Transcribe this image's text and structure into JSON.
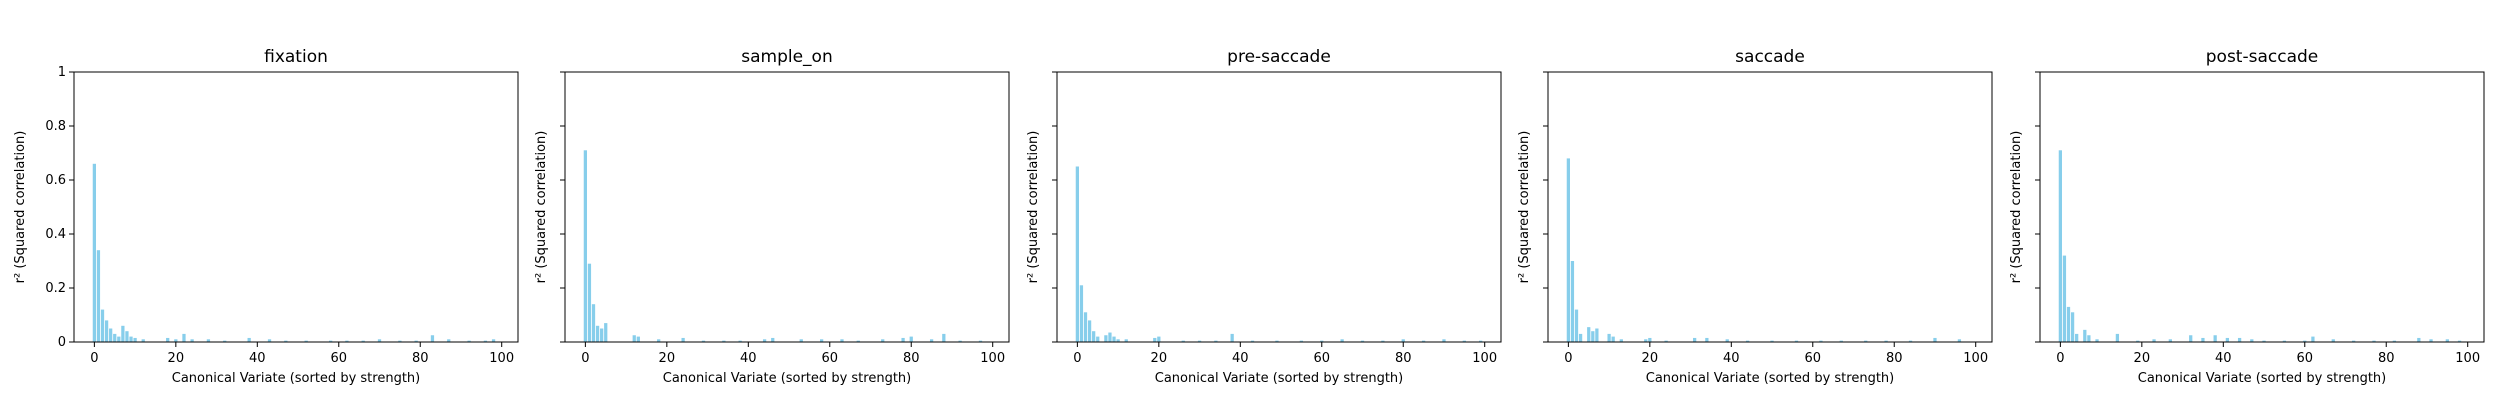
{
  "figure": {
    "ylabel": "r² (Squared correlation)",
    "xlabel": "Canonical Variate (sorted by strength)"
  },
  "style": {
    "bar_color": "#87ceeb",
    "axis_color": "#000000"
  },
  "chart_data": [
    {
      "type": "bar",
      "title": "fixation",
      "xlabel": "Canonical Variate (sorted by strength)",
      "ylabel": "r² (Squared correlation)",
      "xlim": [
        -5,
        104
      ],
      "ylim": [
        0,
        1.0
      ],
      "xticks": [
        0,
        20,
        40,
        60,
        80,
        100
      ],
      "yticks": [
        0.0,
        0.2,
        0.4,
        0.6,
        0.8,
        1.0
      ],
      "grid": false,
      "bars": [
        {
          "x": 0,
          "y": 0.66
        },
        {
          "x": 1,
          "y": 0.34
        },
        {
          "x": 2,
          "y": 0.12
        },
        {
          "x": 3,
          "y": 0.08
        },
        {
          "x": 4,
          "y": 0.05
        },
        {
          "x": 5,
          "y": 0.03
        },
        {
          "x": 6,
          "y": 0.02
        },
        {
          "x": 7,
          "y": 0.06
        },
        {
          "x": 8,
          "y": 0.04
        },
        {
          "x": 9,
          "y": 0.02
        },
        {
          "x": 10,
          "y": 0.015
        },
        {
          "x": 12,
          "y": 0.01
        },
        {
          "x": 18,
          "y": 0.015
        },
        {
          "x": 20,
          "y": 0.01
        },
        {
          "x": 22,
          "y": 0.03
        },
        {
          "x": 24,
          "y": 0.01
        },
        {
          "x": 28,
          "y": 0.01
        },
        {
          "x": 32,
          "y": 0.005
        },
        {
          "x": 38,
          "y": 0.015
        },
        {
          "x": 43,
          "y": 0.01
        },
        {
          "x": 47,
          "y": 0.005
        },
        {
          "x": 52,
          "y": 0.005
        },
        {
          "x": 58,
          "y": 0.005
        },
        {
          "x": 62,
          "y": 0.005
        },
        {
          "x": 66,
          "y": 0.005
        },
        {
          "x": 70,
          "y": 0.01
        },
        {
          "x": 75,
          "y": 0.005
        },
        {
          "x": 79,
          "y": 0.005
        },
        {
          "x": 83,
          "y": 0.025
        },
        {
          "x": 87,
          "y": 0.01
        },
        {
          "x": 92,
          "y": 0.005
        },
        {
          "x": 96,
          "y": 0.005
        },
        {
          "x": 98,
          "y": 0.01
        }
      ]
    },
    {
      "type": "bar",
      "title": "sample_on",
      "xlabel": "Canonical Variate (sorted by strength)",
      "ylabel": "r² (Squared correlation)",
      "xlim": [
        -5,
        104
      ],
      "ylim": [
        0,
        1.0
      ],
      "xticks": [
        0,
        20,
        40,
        60,
        80,
        100
      ],
      "yticks": [
        0.0,
        0.2,
        0.4,
        0.6,
        0.8,
        1.0
      ],
      "grid": false,
      "bars": [
        {
          "x": 0,
          "y": 0.71
        },
        {
          "x": 1,
          "y": 0.29
        },
        {
          "x": 2,
          "y": 0.14
        },
        {
          "x": 3,
          "y": 0.06
        },
        {
          "x": 4,
          "y": 0.05
        },
        {
          "x": 5,
          "y": 0.07
        },
        {
          "x": 12,
          "y": 0.025
        },
        {
          "x": 13,
          "y": 0.02
        },
        {
          "x": 18,
          "y": 0.01
        },
        {
          "x": 24,
          "y": 0.015
        },
        {
          "x": 29,
          "y": 0.005
        },
        {
          "x": 34,
          "y": 0.005
        },
        {
          "x": 38,
          "y": 0.005
        },
        {
          "x": 44,
          "y": 0.01
        },
        {
          "x": 46,
          "y": 0.015
        },
        {
          "x": 53,
          "y": 0.01
        },
        {
          "x": 58,
          "y": 0.01
        },
        {
          "x": 63,
          "y": 0.01
        },
        {
          "x": 67,
          "y": 0.005
        },
        {
          "x": 73,
          "y": 0.01
        },
        {
          "x": 78,
          "y": 0.015
        },
        {
          "x": 80,
          "y": 0.02
        },
        {
          "x": 85,
          "y": 0.01
        },
        {
          "x": 88,
          "y": 0.03
        },
        {
          "x": 92,
          "y": 0.005
        },
        {
          "x": 97,
          "y": 0.005
        }
      ]
    },
    {
      "type": "bar",
      "title": "pre-saccade",
      "xlabel": "Canonical Variate (sorted by strength)",
      "ylabel": "r² (Squared correlation)",
      "xlim": [
        -5,
        104
      ],
      "ylim": [
        0,
        1.0
      ],
      "xticks": [
        0,
        20,
        40,
        60,
        80,
        100
      ],
      "yticks": [
        0.0,
        0.2,
        0.4,
        0.6,
        0.8,
        1.0
      ],
      "grid": false,
      "bars": [
        {
          "x": 0,
          "y": 0.65
        },
        {
          "x": 1,
          "y": 0.21
        },
        {
          "x": 2,
          "y": 0.11
        },
        {
          "x": 3,
          "y": 0.08
        },
        {
          "x": 4,
          "y": 0.04
        },
        {
          "x": 5,
          "y": 0.02
        },
        {
          "x": 7,
          "y": 0.025
        },
        {
          "x": 8,
          "y": 0.035
        },
        {
          "x": 9,
          "y": 0.02
        },
        {
          "x": 10,
          "y": 0.01
        },
        {
          "x": 12,
          "y": 0.01
        },
        {
          "x": 19,
          "y": 0.015
        },
        {
          "x": 20,
          "y": 0.02
        },
        {
          "x": 26,
          "y": 0.005
        },
        {
          "x": 30,
          "y": 0.005
        },
        {
          "x": 34,
          "y": 0.005
        },
        {
          "x": 38,
          "y": 0.03
        },
        {
          "x": 43,
          "y": 0.005
        },
        {
          "x": 49,
          "y": 0.005
        },
        {
          "x": 55,
          "y": 0.005
        },
        {
          "x": 60,
          "y": 0.005
        },
        {
          "x": 65,
          "y": 0.01
        },
        {
          "x": 70,
          "y": 0.005
        },
        {
          "x": 75,
          "y": 0.005
        },
        {
          "x": 80,
          "y": 0.01
        },
        {
          "x": 85,
          "y": 0.005
        },
        {
          "x": 90,
          "y": 0.01
        },
        {
          "x": 95,
          "y": 0.005
        },
        {
          "x": 99,
          "y": 0.005
        }
      ]
    },
    {
      "type": "bar",
      "title": "saccade",
      "xlabel": "Canonical Variate (sorted by strength)",
      "ylabel": "r² (Squared correlation)",
      "xlim": [
        -5,
        104
      ],
      "ylim": [
        0,
        1.0
      ],
      "xticks": [
        0,
        20,
        40,
        60,
        80,
        100
      ],
      "yticks": [
        0.0,
        0.2,
        0.4,
        0.6,
        0.8,
        1.0
      ],
      "grid": false,
      "bars": [
        {
          "x": 0,
          "y": 0.68
        },
        {
          "x": 1,
          "y": 0.3
        },
        {
          "x": 2,
          "y": 0.12
        },
        {
          "x": 3,
          "y": 0.03
        },
        {
          "x": 5,
          "y": 0.055
        },
        {
          "x": 6,
          "y": 0.04
        },
        {
          "x": 7,
          "y": 0.05
        },
        {
          "x": 10,
          "y": 0.03
        },
        {
          "x": 11,
          "y": 0.02
        },
        {
          "x": 13,
          "y": 0.01
        },
        {
          "x": 19,
          "y": 0.01
        },
        {
          "x": 20,
          "y": 0.015
        },
        {
          "x": 24,
          "y": 0.005
        },
        {
          "x": 31,
          "y": 0.015
        },
        {
          "x": 34,
          "y": 0.015
        },
        {
          "x": 39,
          "y": 0.01
        },
        {
          "x": 44,
          "y": 0.005
        },
        {
          "x": 50,
          "y": 0.005
        },
        {
          "x": 56,
          "y": 0.005
        },
        {
          "x": 62,
          "y": 0.005
        },
        {
          "x": 67,
          "y": 0.005
        },
        {
          "x": 73,
          "y": 0.005
        },
        {
          "x": 78,
          "y": 0.005
        },
        {
          "x": 84,
          "y": 0.005
        },
        {
          "x": 90,
          "y": 0.015
        },
        {
          "x": 96,
          "y": 0.01
        }
      ]
    },
    {
      "type": "bar",
      "title": "post-saccade",
      "xlabel": "Canonical Variate (sorted by strength)",
      "ylabel": "r² (Squared correlation)",
      "xlim": [
        -5,
        104
      ],
      "ylim": [
        0,
        1.0
      ],
      "xticks": [
        0,
        20,
        40,
        60,
        80,
        100
      ],
      "yticks": [
        0.0,
        0.2,
        0.4,
        0.6,
        0.8,
        1.0
      ],
      "grid": false,
      "bars": [
        {
          "x": 0,
          "y": 0.71
        },
        {
          "x": 1,
          "y": 0.32
        },
        {
          "x": 2,
          "y": 0.13
        },
        {
          "x": 3,
          "y": 0.11
        },
        {
          "x": 4,
          "y": 0.03
        },
        {
          "x": 6,
          "y": 0.045
        },
        {
          "x": 7,
          "y": 0.025
        },
        {
          "x": 9,
          "y": 0.01
        },
        {
          "x": 14,
          "y": 0.03
        },
        {
          "x": 19,
          "y": 0.005
        },
        {
          "x": 23,
          "y": 0.01
        },
        {
          "x": 27,
          "y": 0.01
        },
        {
          "x": 32,
          "y": 0.025
        },
        {
          "x": 35,
          "y": 0.015
        },
        {
          "x": 38,
          "y": 0.025
        },
        {
          "x": 41,
          "y": 0.015
        },
        {
          "x": 44,
          "y": 0.015
        },
        {
          "x": 47,
          "y": 0.01
        },
        {
          "x": 50,
          "y": 0.005
        },
        {
          "x": 55,
          "y": 0.005
        },
        {
          "x": 60,
          "y": 0.005
        },
        {
          "x": 62,
          "y": 0.02
        },
        {
          "x": 67,
          "y": 0.01
        },
        {
          "x": 72,
          "y": 0.005
        },
        {
          "x": 77,
          "y": 0.005
        },
        {
          "x": 82,
          "y": 0.005
        },
        {
          "x": 88,
          "y": 0.015
        },
        {
          "x": 91,
          "y": 0.01
        },
        {
          "x": 95,
          "y": 0.01
        },
        {
          "x": 98,
          "y": 0.005
        }
      ]
    }
  ]
}
